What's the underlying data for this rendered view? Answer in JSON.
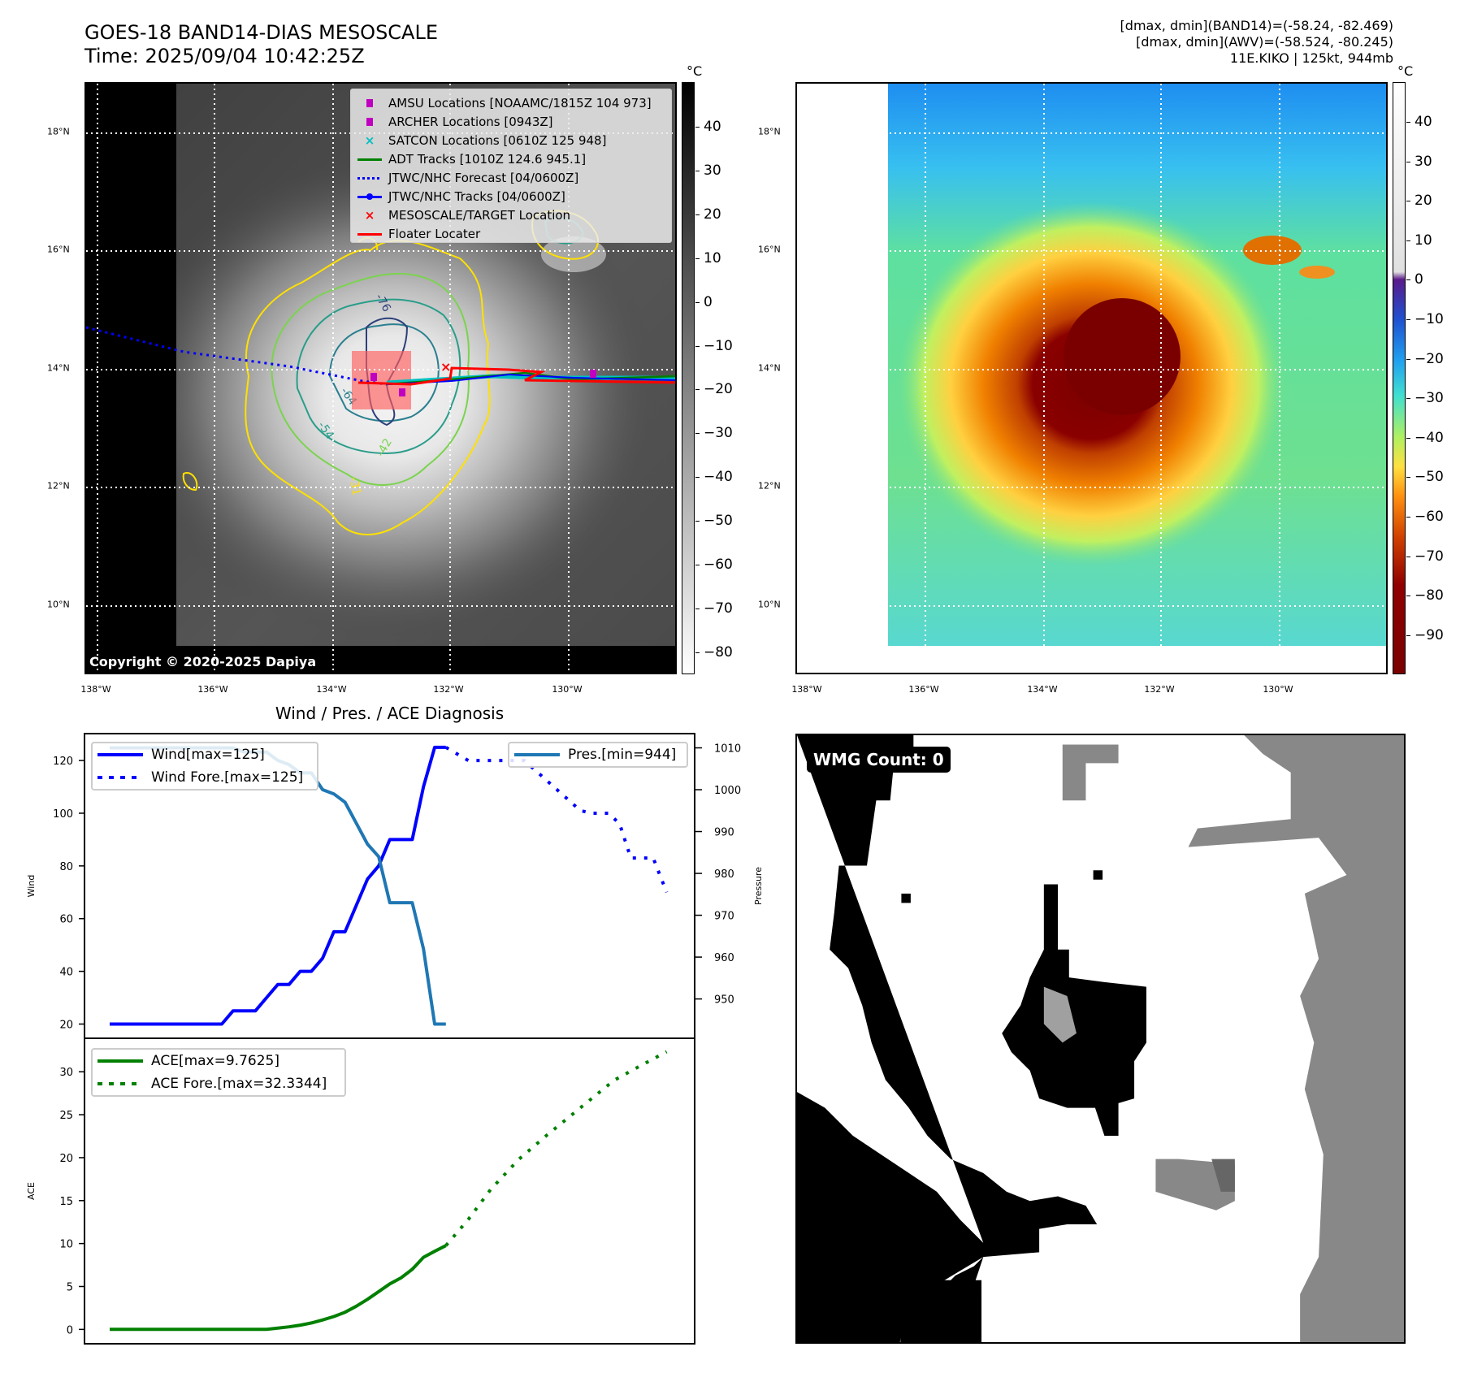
{
  "header": {
    "title_line1": "GOES-18 BAND14-DIAS MESOSCALE",
    "title_line2": "Time: 2025/09/04 10:42:25Z",
    "info_line1": "[dmax, dmin](BAND14)=(-58.24, -82.469)",
    "info_line2": "[dmax, dmin](AWV)=(-58.524, -80.245)",
    "info_line3": "11E.KIKO | 125kt, 944mb"
  },
  "maps": {
    "lat_labels": [
      "18°N",
      "16°N",
      "14°N",
      "12°N",
      "10°N"
    ],
    "lon_labels": [
      "138°W",
      "136°W",
      "134°W",
      "132°W",
      "130°W"
    ],
    "unit": "°C",
    "left_colorbar_ticks": [
      "40",
      "30",
      "20",
      "10",
      "0",
      "−10",
      "−20",
      "−30",
      "−40",
      "−50",
      "−60",
      "−70",
      "−80"
    ],
    "right_colorbar_ticks": [
      "40",
      "30",
      "20",
      "10",
      "0",
      "−10",
      "−20",
      "−30",
      "−40",
      "−50",
      "−60",
      "−70",
      "−80",
      "−90"
    ],
    "copyright": "Copyright © 2020-2025 Dapiya",
    "contour_labels": [
      "-76",
      "-64",
      "-54",
      "-42",
      "-31"
    ],
    "legend": [
      {
        "label": "AMSU Locations [NOAAMC/1815Z 104 973]",
        "symbol": "square",
        "color": "#c000c0"
      },
      {
        "label": "ARCHER Locations [0943Z]",
        "symbol": "square",
        "color": "#c000c0"
      },
      {
        "label": "SATCON Locations [0610Z 125 948]",
        "symbol": "x",
        "color": "#00c0c0"
      },
      {
        "label": "ADT Tracks [1010Z 124.6 945.1]",
        "symbol": "line",
        "color": "#008000"
      },
      {
        "label": "JTWC/NHC Forecast [04/0600Z]",
        "symbol": "dotted",
        "color": "#0000ff"
      },
      {
        "label": "JTWC/NHC Tracks [04/0600Z]",
        "symbol": "line-dot",
        "color": "#0000ff"
      },
      {
        "label": "MESOSCALE/TARGET Location",
        "symbol": "x",
        "color": "#ff0000"
      },
      {
        "label": "Floater Locater",
        "symbol": "line",
        "color": "#ff0000"
      }
    ]
  },
  "wmg": {
    "label": "WMG Count: 0"
  },
  "chart_data": {
    "type": "line",
    "title": "Wind / Pres. / ACE Diagnosis",
    "panels": [
      {
        "ylabel": "Wind",
        "ylim": [
          14.6,
          130.2
        ],
        "yticks": [
          20,
          40,
          60,
          80,
          100,
          120
        ],
        "y2label": "Pressure",
        "y2lim": [
          940.6,
          1013.4
        ],
        "y2ticks": [
          950,
          960,
          970,
          980,
          990,
          1000,
          1010
        ],
        "xlim": [
          -2.25,
          52.2
        ],
        "series": [
          {
            "name": "Wind[max=125]",
            "axis": "y",
            "color": "#0000ff",
            "style": "solid",
            "x": [
              0,
              1,
              2,
              3,
              4,
              5,
              6,
              7,
              8,
              9,
              10,
              11,
              12,
              13,
              14,
              15,
              16,
              17,
              18,
              19,
              20,
              21,
              22,
              23,
              24,
              25,
              26,
              27,
              28,
              29,
              30
            ],
            "y": [
              20,
              20,
              20,
              20,
              20,
              20,
              20,
              20,
              20,
              20,
              20,
              25,
              25,
              25,
              30,
              35,
              35,
              40,
              40,
              45,
              55,
              55,
              65,
              75,
              80,
              90,
              90,
              90,
              110,
              125,
              125
            ]
          },
          {
            "name": "Wind Fore.[max=125]",
            "axis": "y",
            "color": "#0000ff",
            "style": "dotted",
            "x": [
              30,
              32,
              36,
              37,
              42,
              43,
              44.5,
              45.5,
              46.5,
              48.5,
              49.7
            ],
            "y": [
              125,
              120,
              120,
              120,
              101,
              100,
              100,
              96,
              83,
              83,
              70
            ]
          },
          {
            "name": "Pres.[min=944]",
            "axis": "y2",
            "color": "#1f77b4",
            "style": "solid",
            "x": [
              0,
              1,
              2,
              3,
              4,
              5,
              6,
              7,
              8,
              9,
              10,
              11,
              12,
              13,
              14,
              15,
              16,
              17,
              18,
              19,
              20,
              21,
              22,
              23,
              24,
              25,
              26,
              27,
              28,
              29,
              30
            ],
            "y": [
              1010,
              1010,
              1010,
              1010,
              1010,
              1010,
              1010,
              1010,
              1010,
              1010,
              1010,
              1010,
              1009,
              1009,
              1009,
              1007,
              1006,
              1004,
              1004,
              1000,
              999,
              997,
              992,
              987,
              984,
              973,
              973,
              973,
              962,
              944,
              944
            ]
          }
        ],
        "legend_left": [
          "Wind[max=125]",
          "Wind Fore.[max=125]"
        ],
        "legend_right": [
          "Pres.[min=944]"
        ]
      },
      {
        "ylabel": "ACE",
        "ylim": [
          -1.67,
          33.9
        ],
        "yticks": [
          0,
          5,
          10,
          15,
          20,
          25,
          30
        ],
        "xlim": [
          -2.25,
          52.2
        ],
        "series": [
          {
            "name": "ACE[max=9.7625]",
            "color": "#008000",
            "style": "solid",
            "x": [
              0,
              1,
              2,
              3,
              4,
              5,
              6,
              7,
              8,
              9,
              10,
              11,
              12,
              13,
              14,
              15,
              16,
              17,
              18,
              19,
              20,
              21,
              22,
              23,
              24,
              25,
              26,
              27,
              28,
              29,
              30
            ],
            "y": [
              0,
              0,
              0,
              0,
              0,
              0,
              0,
              0,
              0,
              0,
              0,
              0,
              0,
              0,
              0,
              0.15,
              0.3,
              0.5,
              0.75,
              1.1,
              1.5,
              2.0,
              2.7,
              3.5,
              4.4,
              5.3,
              6.0,
              7.0,
              8.4,
              9.1,
              9.7625
            ]
          },
          {
            "name": "ACE Fore.[max=32.3344]",
            "color": "#008000",
            "style": "dotted",
            "x": [
              30,
              32,
              34,
              36.5,
              39,
              42,
              45,
              47.5,
              49.7
            ],
            "y": [
              9.7625,
              12.8,
              16.3,
              19.8,
              22.6,
              25.8,
              29.0,
              30.8,
              32.3344
            ]
          }
        ]
      }
    ]
  }
}
